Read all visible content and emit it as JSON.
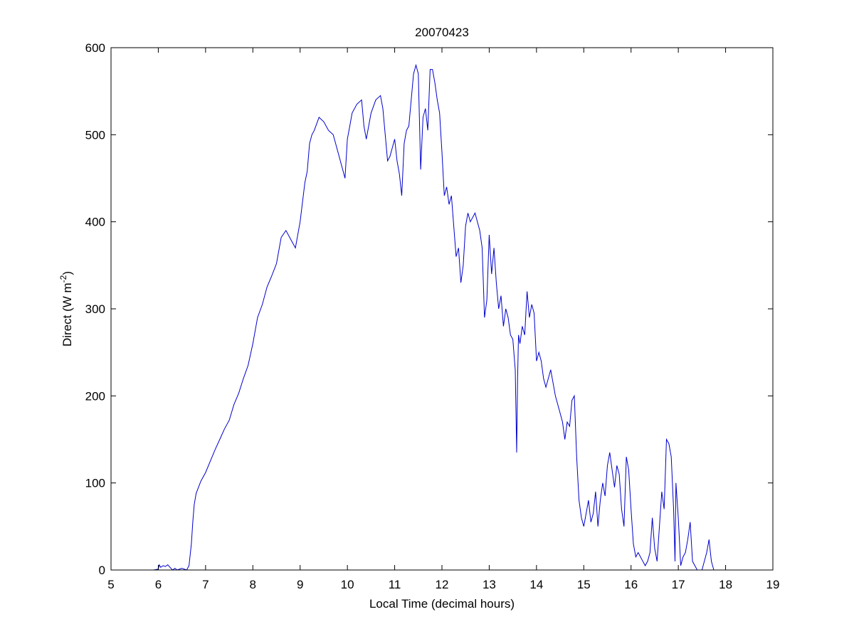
{
  "chart_data": {
    "type": "line",
    "title": "20070423",
    "xlabel": "Local Time (decimal hours)",
    "ylabel": {
      "main": "Direct (W m",
      "sup": "-2",
      "close": ")"
    },
    "xlim": [
      5,
      19
    ],
    "ylim": [
      0,
      600
    ],
    "xticks": [
      5,
      6,
      7,
      8,
      9,
      10,
      11,
      12,
      13,
      14,
      15,
      16,
      17,
      18,
      19
    ],
    "yticks": [
      0,
      100,
      200,
      300,
      400,
      500,
      600
    ],
    "grid": false,
    "legend": "none",
    "series": [
      {
        "color": "#0000cc",
        "x": [
          5.78,
          5.9,
          6.0,
          6.02,
          6.05,
          6.1,
          6.15,
          6.2,
          6.25,
          6.3,
          6.33,
          6.35,
          6.4,
          6.5,
          6.6,
          6.65,
          6.7,
          6.73,
          6.76,
          6.8,
          6.85,
          6.9,
          7.0,
          7.1,
          7.2,
          7.3,
          7.4,
          7.5,
          7.6,
          7.7,
          7.8,
          7.9,
          8.0,
          8.1,
          8.2,
          8.3,
          8.4,
          8.5,
          8.6,
          8.7,
          8.8,
          8.9,
          9.0,
          9.1,
          9.15,
          9.2,
          9.25,
          9.3,
          9.4,
          9.5,
          9.6,
          9.7,
          9.8,
          9.9,
          9.95,
          10.0,
          10.05,
          10.1,
          10.2,
          10.3,
          10.35,
          10.4,
          10.5,
          10.6,
          10.7,
          10.75,
          10.8,
          10.85,
          10.9,
          11.0,
          11.05,
          11.1,
          11.15,
          11.2,
          11.25,
          11.3,
          11.4,
          11.45,
          11.5,
          11.55,
          11.6,
          11.65,
          11.7,
          11.75,
          11.8,
          11.85,
          11.9,
          11.95,
          12.0,
          12.05,
          12.1,
          12.15,
          12.2,
          12.3,
          12.35,
          12.4,
          12.45,
          12.5,
          12.55,
          12.6,
          12.7,
          12.75,
          12.8,
          12.85,
          12.9,
          12.95,
          13.0,
          13.05,
          13.1,
          13.15,
          13.2,
          13.25,
          13.3,
          13.35,
          13.4,
          13.45,
          13.5,
          13.55,
          13.58,
          13.6,
          13.62,
          13.65,
          13.7,
          13.75,
          13.8,
          13.85,
          13.9,
          13.95,
          14.0,
          14.05,
          14.1,
          14.15,
          14.2,
          14.3,
          14.4,
          14.5,
          14.55,
          14.6,
          14.65,
          14.7,
          14.75,
          14.8,
          14.85,
          14.9,
          14.95,
          15.0,
          15.05,
          15.1,
          15.15,
          15.2,
          15.25,
          15.3,
          15.35,
          15.4,
          15.45,
          15.5,
          15.55,
          15.6,
          15.65,
          15.7,
          15.75,
          15.8,
          15.85,
          15.9,
          15.95,
          16.0,
          16.05,
          16.1,
          16.15,
          16.2,
          16.25,
          16.3,
          16.35,
          16.4,
          16.45,
          16.5,
          16.55,
          16.6,
          16.65,
          16.7,
          16.75,
          16.8,
          16.85,
          16.9,
          16.93,
          16.95,
          17.0,
          17.05,
          17.1,
          17.15,
          17.2,
          17.25,
          17.3,
          17.4,
          17.45,
          17.5,
          17.55,
          17.6,
          17.65,
          17.7,
          17.75,
          17.8
        ],
        "y": [
          0,
          0,
          1,
          6,
          3,
          5,
          4,
          6,
          3,
          0,
          1,
          2,
          0,
          2,
          0,
          5,
          30,
          55,
          75,
          88,
          95,
          102,
          112,
          125,
          138,
          150,
          162,
          172,
          190,
          203,
          220,
          235,
          260,
          290,
          305,
          325,
          338,
          352,
          382,
          390,
          380,
          370,
          400,
          445,
          458,
          490,
          500,
          505,
          520,
          515,
          505,
          500,
          480,
          460,
          450,
          495,
          510,
          525,
          535,
          540,
          510,
          495,
          525,
          540,
          545,
          530,
          500,
          470,
          475,
          495,
          470,
          455,
          430,
          490,
          505,
          510,
          570,
          580,
          570,
          460,
          520,
          530,
          505,
          575,
          575,
          560,
          540,
          525,
          480,
          430,
          440,
          420,
          430,
          360,
          370,
          330,
          350,
          395,
          410,
          400,
          410,
          400,
          390,
          370,
          290,
          310,
          385,
          340,
          370,
          330,
          300,
          315,
          280,
          300,
          290,
          270,
          265,
          230,
          135,
          220,
          270,
          260,
          280,
          270,
          320,
          290,
          305,
          295,
          240,
          250,
          240,
          220,
          210,
          230,
          200,
          180,
          170,
          150,
          170,
          165,
          195,
          200,
          130,
          80,
          60,
          50,
          65,
          80,
          55,
          65,
          90,
          50,
          80,
          100,
          85,
          120,
          135,
          115,
          95,
          120,
          110,
          70,
          50,
          130,
          115,
          70,
          30,
          15,
          20,
          15,
          10,
          5,
          10,
          20,
          60,
          25,
          10,
          50,
          90,
          70,
          150,
          145,
          130,
          70,
          10,
          100,
          60,
          5,
          15,
          20,
          35,
          55,
          10,
          0,
          0,
          0,
          10,
          20,
          35,
          10,
          0,
          0
        ]
      }
    ]
  }
}
